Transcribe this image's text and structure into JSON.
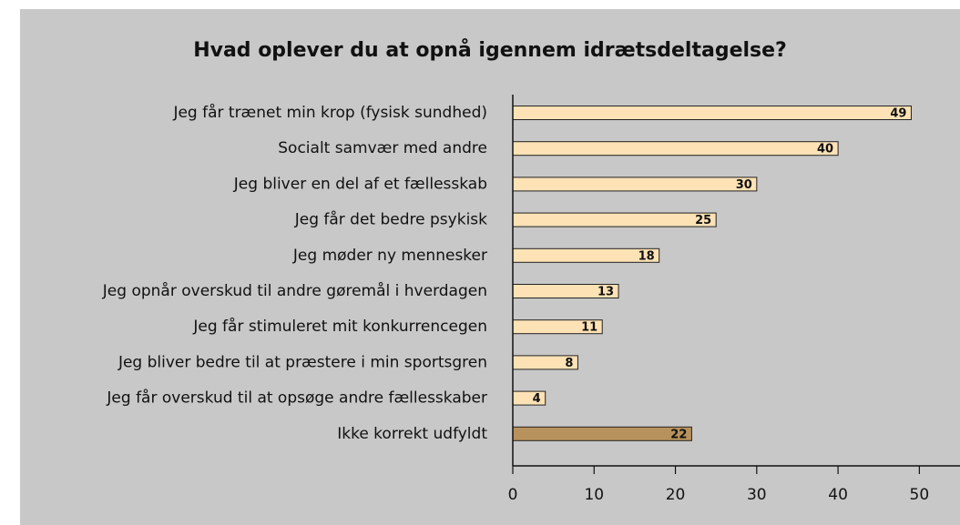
{
  "chart_data": {
    "type": "barh",
    "title": "Hvad oplever du at opnå igennem idrætsdeltagelse?",
    "categories": [
      "Jeg får trænet min krop (fysisk sundhed)",
      "Socialt samvær med andre",
      "Jeg bliver en del af et fællesskab",
      "Jeg får det bedre psykisk",
      "Jeg møder ny mennesker",
      "Jeg opnår overskud til andre gøremål i hverdagen",
      "Jeg får stimuleret mit konkurrencegen",
      "Jeg bliver bedre til at præstere i min sportsgren",
      "Jeg får overskud til at opsøge andre fællesskaber",
      "Ikke korrekt udfyldt"
    ],
    "values": [
      49,
      40,
      30,
      25,
      18,
      13,
      11,
      8,
      4,
      22
    ],
    "colors": [
      "#fde2b6",
      "#fde2b6",
      "#fde2b6",
      "#fde2b6",
      "#fde2b6",
      "#fde2b6",
      "#fde2b6",
      "#fde2b6",
      "#fde2b6",
      "#b8925c"
    ],
    "xlim": [
      0,
      55
    ],
    "xticks": [
      0,
      10,
      20,
      30,
      40,
      50
    ]
  }
}
